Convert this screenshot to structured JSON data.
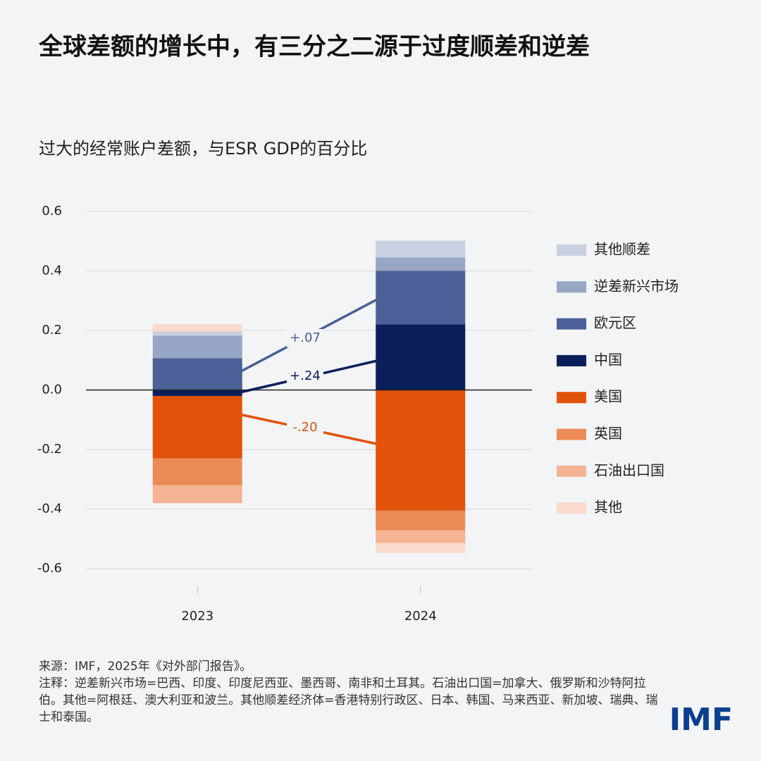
{
  "title": "全球差额的增长中，有三分之二源于过度顺差和逆差",
  "chart_data": {
    "type": "stacked-bar",
    "title": "过大的经常账户差额，与ESR GDP的百分比",
    "categories": [
      "2023",
      "2024"
    ],
    "series": [
      {
        "name": "其他顺差",
        "color": "#c9d0e0",
        "values": [
          0.014,
          0.057
        ]
      },
      {
        "name": "逆差新兴市场",
        "color": "#97a6c4",
        "values": [
          0.076,
          0.045
        ]
      },
      {
        "name": "欧元区",
        "color": "#4a6096",
        "values": [
          0.107,
          0.18
        ]
      },
      {
        "name": "中国",
        "color": "#0b1f5c",
        "values": [
          -0.02,
          0.22
        ]
      },
      {
        "name": "美国",
        "color": "#e2520a",
        "values": [
          -0.21,
          -0.405
        ]
      },
      {
        "name": "英国",
        "color": "#ec8a58",
        "values": [
          -0.09,
          -0.066
        ]
      },
      {
        "name": "石油出口国",
        "color": "#f4b393",
        "values": [
          -0.06,
          -0.043
        ]
      },
      {
        "name": "其他",
        "color": "#f9dacb",
        "values": [
          0.024,
          -0.033
        ]
      }
    ],
    "ylim": [
      -0.6,
      0.6
    ],
    "yticks": [
      -0.6,
      -0.4,
      -0.2,
      {
        "value": 0,
        "label": "0.0"
      },
      0.2,
      0.4,
      0.6
    ],
    "grid": true,
    "annotations": [
      {
        "text": "+.07",
        "color": "#4a6096"
      },
      {
        "text": "+.24",
        "color": "#0b1f5c"
      },
      {
        "text": "-.20",
        "color": "#e2520a"
      }
    ]
  },
  "source": "来源：IMF，2025年《对外部门报告》。",
  "note": "注释：逆差新兴市场=巴西、印度、印度尼西亚、墨西哥、南非和土耳其。石油出口国=加拿大、俄罗斯和沙特阿拉伯。其他=阿根廷、澳大利亚和波兰。其他顺差经济体=香港特别行政区、日本、韩国、马来西亚、新加坡、瑞典、瑞士和泰国。",
  "logo": "IMF"
}
